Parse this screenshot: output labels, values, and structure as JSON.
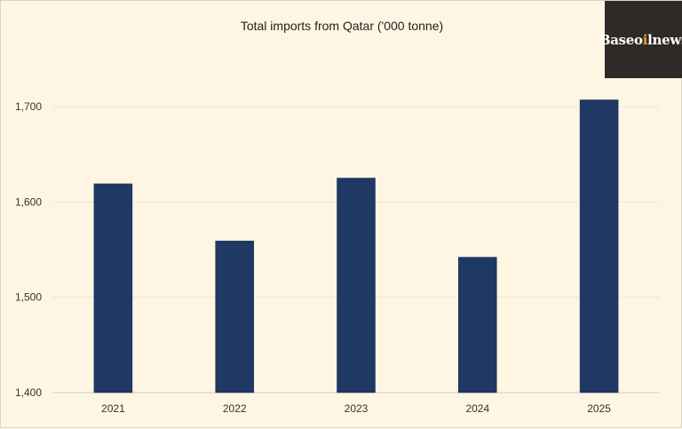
{
  "logo": {
    "text_pre": "Baseo",
    "text_dot": "i",
    "text_post": "lnews"
  },
  "chart_data": {
    "type": "bar",
    "title": "Total imports from Qatar ('000 tonne)",
    "categories": [
      "2021",
      "2022",
      "2023",
      "2024",
      "2025"
    ],
    "values": [
      1619,
      1559,
      1625,
      1542,
      1707
    ],
    "ylim": [
      1400,
      1700
    ],
    "yticks": [
      1400,
      1500,
      1600,
      1700
    ],
    "ytick_labels": [
      "1,400",
      "1,500",
      "1,600",
      "1,700"
    ],
    "xlabel": "",
    "ylabel": "",
    "grid": true,
    "bar_color": "#1f3864"
  }
}
